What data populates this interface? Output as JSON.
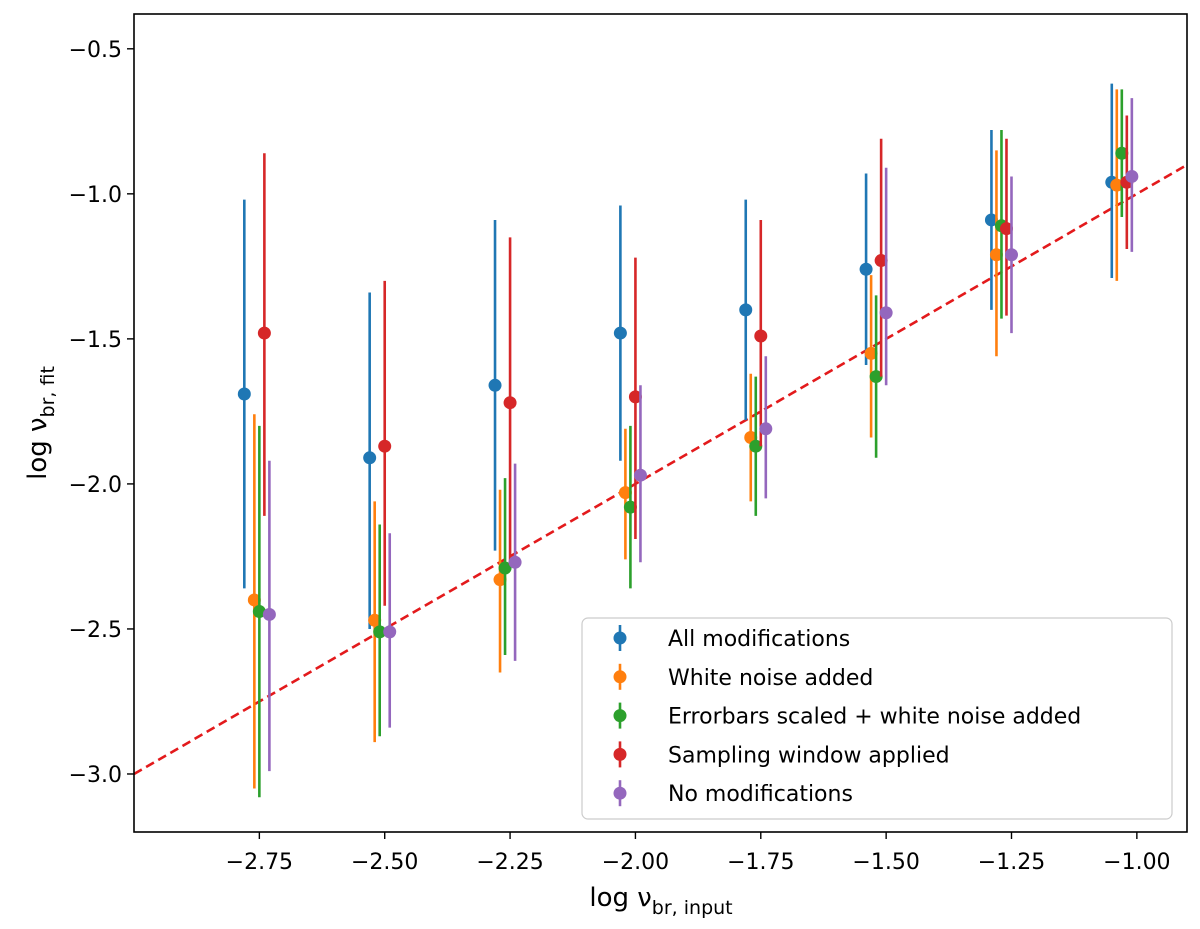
{
  "chart_data": {
    "type": "scatter",
    "title": "",
    "xlabel": {
      "main": "log ν",
      "sub": "br, input"
    },
    "ylabel": {
      "main": "log ν",
      "sub": "br, fit"
    },
    "xlim": [
      -3.0,
      -0.9
    ],
    "ylim": [
      -3.2,
      -0.38
    ],
    "xticks": [
      -2.75,
      -2.5,
      -2.25,
      -2.0,
      -1.75,
      -1.5,
      -1.25,
      -1.0
    ],
    "xtick_labels": [
      "−2.75",
      "−2.50",
      "−2.25",
      "−2.00",
      "−1.75",
      "−1.50",
      "−1.25",
      "−1.00"
    ],
    "yticks": [
      -3.0,
      -2.5,
      -2.0,
      -1.5,
      -1.0,
      -0.5
    ],
    "ytick_labels": [
      "−3.0",
      "−2.5",
      "−2.0",
      "−1.5",
      "−1.0",
      "−0.5"
    ],
    "reference_line": {
      "label": "",
      "slope": 1,
      "intercept": 0,
      "style": "dashed",
      "color": "#e31a1c"
    },
    "legend_position": "lower-right",
    "series": [
      {
        "name": "All modifications",
        "color": "#1f77b4",
        "x": [
          -2.78,
          -2.53,
          -2.28,
          -2.03,
          -1.78,
          -1.54,
          -1.29,
          -1.05
        ],
        "y": [
          -1.69,
          -1.91,
          -1.66,
          -1.48,
          -1.4,
          -1.26,
          -1.09,
          -0.96
        ],
        "yerr_low": [
          -2.36,
          -2.5,
          -2.23,
          -1.92,
          -1.78,
          -1.59,
          -1.4,
          -1.29
        ],
        "yerr_high": [
          -1.02,
          -1.34,
          -1.09,
          -1.04,
          -1.02,
          -0.93,
          -0.78,
          -0.62
        ]
      },
      {
        "name": "White noise added",
        "color": "#ff7f0e",
        "x": [
          -2.76,
          -2.52,
          -2.27,
          -2.02,
          -1.77,
          -1.53,
          -1.28,
          -1.04
        ],
        "y": [
          -2.4,
          -2.47,
          -2.33,
          -2.03,
          -1.84,
          -1.55,
          -1.21,
          -0.97
        ],
        "yerr_low": [
          -3.05,
          -2.89,
          -2.65,
          -2.26,
          -2.06,
          -1.84,
          -1.56,
          -1.3
        ],
        "yerr_high": [
          -1.76,
          -2.06,
          -2.02,
          -1.81,
          -1.62,
          -1.28,
          -0.85,
          -0.64
        ]
      },
      {
        "name": "Errorbars scaled + white noise added",
        "color": "#2ca02c",
        "x": [
          -2.75,
          -2.51,
          -2.26,
          -2.01,
          -1.76,
          -1.52,
          -1.27,
          -1.03
        ],
        "y": [
          -2.44,
          -2.51,
          -2.29,
          -2.08,
          -1.87,
          -1.63,
          -1.11,
          -0.86
        ],
        "yerr_low": [
          -3.08,
          -2.87,
          -2.59,
          -2.36,
          -2.11,
          -1.91,
          -1.43,
          -1.08
        ],
        "yerr_high": [
          -1.8,
          -2.14,
          -1.98,
          -1.8,
          -1.63,
          -1.35,
          -0.78,
          -0.64
        ]
      },
      {
        "name": "Sampling window applied",
        "color": "#d62728",
        "x": [
          -2.74,
          -2.5,
          -2.25,
          -2.0,
          -1.75,
          -1.51,
          -1.26,
          -1.02
        ],
        "y": [
          -1.48,
          -1.87,
          -1.72,
          -1.7,
          -1.49,
          -1.23,
          -1.12,
          -0.96
        ],
        "yerr_low": [
          -2.11,
          -2.42,
          -2.28,
          -2.19,
          -1.87,
          -1.63,
          -1.42,
          -1.19
        ],
        "yerr_high": [
          -0.86,
          -1.3,
          -1.15,
          -1.22,
          -1.09,
          -0.81,
          -0.81,
          -0.73
        ]
      },
      {
        "name": "No modifications",
        "color": "#9467bd",
        "x": [
          -2.73,
          -2.49,
          -2.24,
          -1.99,
          -1.74,
          -1.5,
          -1.25,
          -1.01
        ],
        "y": [
          -2.45,
          -2.51,
          -2.27,
          -1.97,
          -1.81,
          -1.41,
          -1.21,
          -0.94
        ],
        "yerr_low": [
          -2.99,
          -2.84,
          -2.61,
          -2.27,
          -2.05,
          -1.66,
          -1.48,
          -1.2
        ],
        "yerr_high": [
          -1.92,
          -2.17,
          -1.93,
          -1.66,
          -1.56,
          -0.91,
          -0.94,
          -0.67
        ]
      }
    ]
  }
}
